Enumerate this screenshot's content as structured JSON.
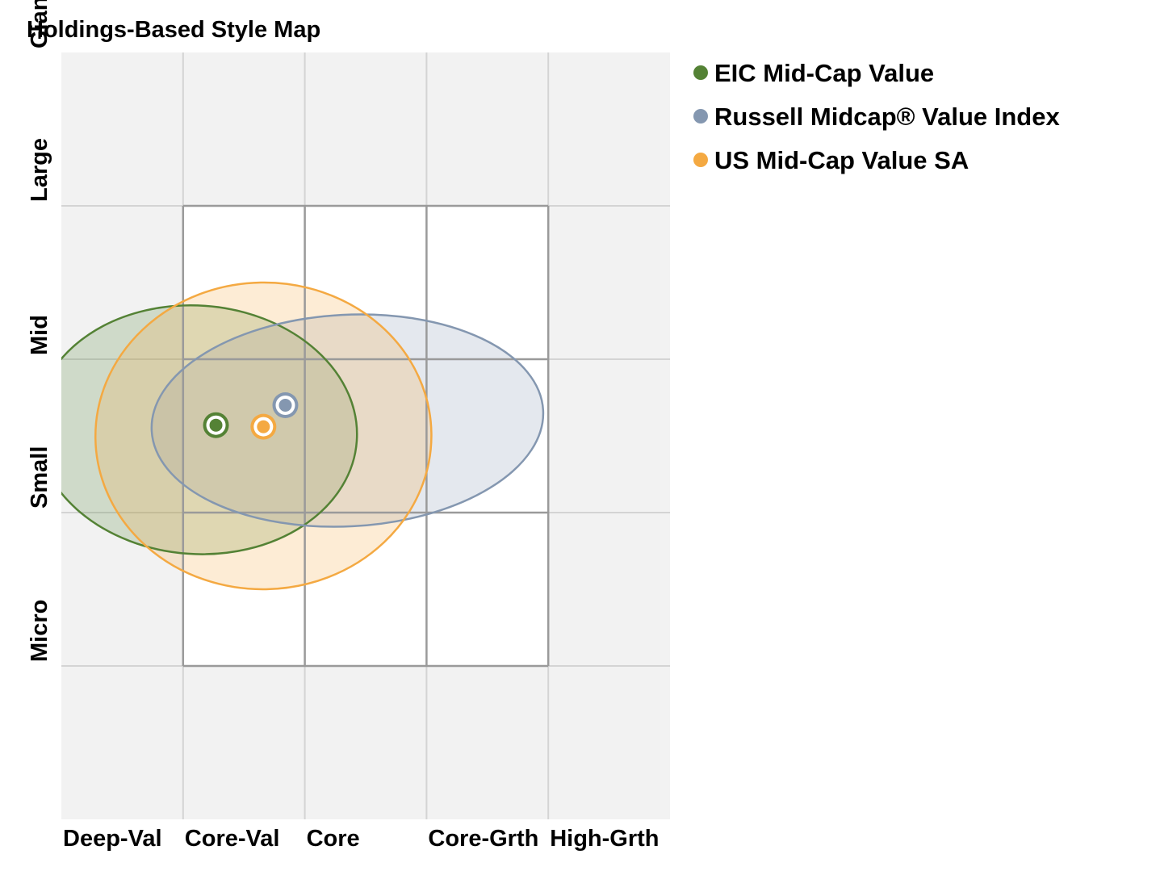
{
  "chart_data": {
    "type": "scatter",
    "subtype": "holdings-based-style-map",
    "title": "Holdings-Based Style Map",
    "x_categories": [
      "Deep-Val",
      "Core-Val",
      "Core",
      "Core-Grth",
      "High-Grth"
    ],
    "y_categories": [
      "Giant",
      "Large",
      "Mid",
      "Small",
      "Micro"
    ],
    "xlim": [
      0,
      5
    ],
    "ylim": [
      0,
      5
    ],
    "grid": true,
    "legend_position": "right",
    "background_color": "#f2f2f2",
    "series": [
      {
        "name": "EIC Mid-Cap Value",
        "color": "#548235",
        "fill": "#548235",
        "x": 1.27,
        "y": 2.57,
        "ellipse": {
          "cx": 1.11,
          "cy": 2.54,
          "rx": 1.32,
          "ry": 0.81,
          "rotation_deg": 4
        }
      },
      {
        "name": "Russell Midcap® Value Index",
        "color": "#8497b0",
        "fill": "#8497b0",
        "x": 1.84,
        "y": 2.7,
        "ellipse": {
          "cx": 2.35,
          "cy": 2.6,
          "rx": 1.61,
          "ry": 0.69,
          "rotation_deg": -3
        }
      },
      {
        "name": "US Mid-Cap Value SA",
        "color": "#f4a942",
        "fill": "#f4a942",
        "x": 1.66,
        "y": 2.56,
        "ellipse": {
          "cx": 1.66,
          "cy": 2.5,
          "rx": 1.38,
          "ry": 1.0,
          "rotation_deg": -1
        }
      }
    ]
  }
}
